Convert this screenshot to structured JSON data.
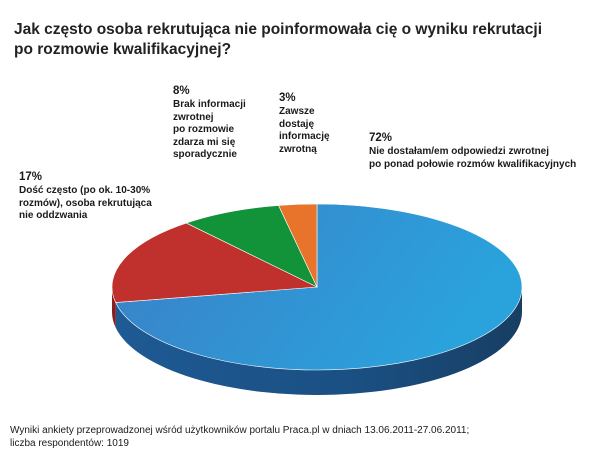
{
  "chart_data": {
    "type": "pie",
    "title_lines": [
      "Jak często osoba rekrutująca nie poinformowała cię o wyniku rekrutacji",
      "po rozmowie kwalifikacyjnej?"
    ],
    "slices": [
      {
        "value": 72,
        "percent_label": "72%",
        "label_lines": [
          "Nie dostałam/em odpowiedzi zwrotnej",
          "po ponad połowie rozmów kwalifikacyjnych"
        ],
        "color_top": "#2f86cf",
        "color_side": "#1d5e98"
      },
      {
        "value": 17,
        "percent_label": "17%",
        "label_lines": [
          "Dość często (po ok. 10-30%",
          "rozmów), osoba rekrutująca",
          "nie oddzwania"
        ],
        "color_top": "#c0302c",
        "color_side": "#8a1f1c"
      },
      {
        "value": 8,
        "percent_label": "8%",
        "label_lines": [
          "Brak informacji",
          "zwrotnej",
          "po rozmowie",
          "zdarza mi się",
          "sporadycznie"
        ],
        "color_top": "#12933a",
        "color_side": "#0b6a28"
      },
      {
        "value": 3,
        "percent_label": "3%",
        "label_lines": [
          "Zawsze",
          "dostaję",
          "informację",
          "zwrotną"
        ],
        "color_top": "#e8732a",
        "color_side": "#b0521a"
      }
    ],
    "start_angle_deg": -90,
    "direction": "clockwise",
    "three_d": true,
    "legend": "none"
  },
  "footnote_lines": [
    "Wyniki ankiety przeprowadzonej wśród użytkowników portalu Praca.pl w dniach 13.06.2011-27.06.2011;",
    "liczba respondentów: 1019"
  ]
}
